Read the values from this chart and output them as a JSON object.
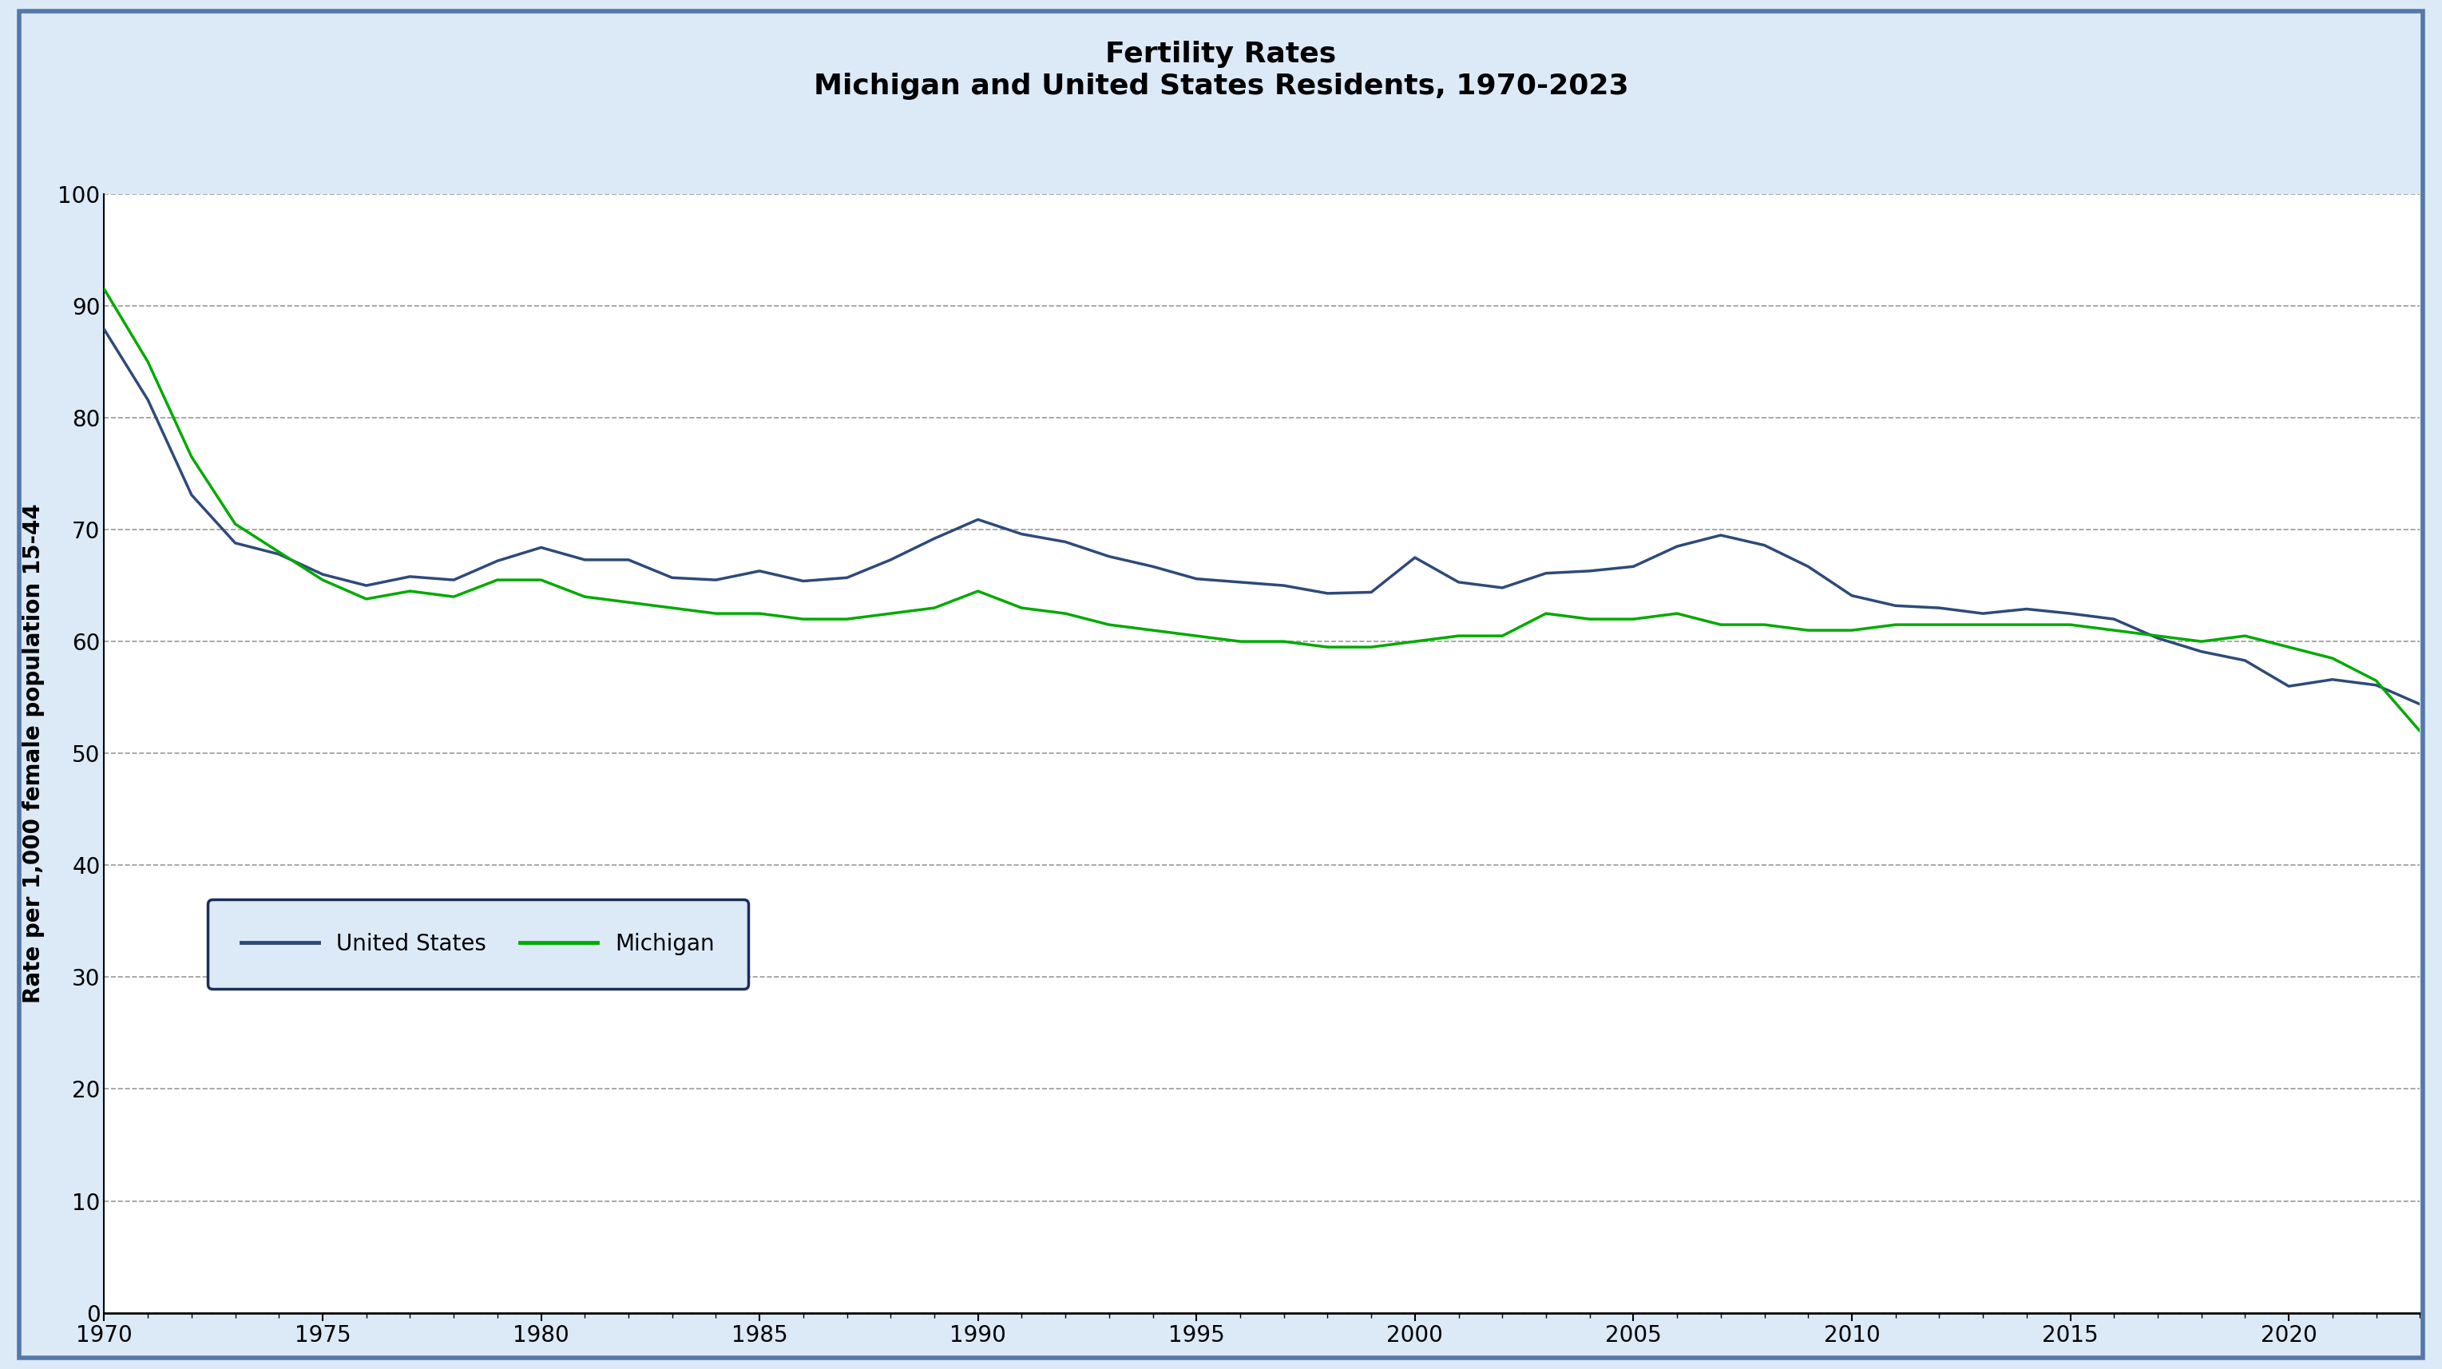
{
  "title_line1": "Fertility Rates",
  "title_line2": "Michigan and United States Residents, 1970-2023",
  "ylabel": "Rate per 1,000 female population 15-44",
  "xlabel": "",
  "background_color": "#dce9f7",
  "plot_bg_color": "#ffffff",
  "ylim": [
    0,
    100
  ],
  "yticks": [
    0,
    10,
    20,
    30,
    40,
    50,
    60,
    70,
    80,
    90,
    100
  ],
  "xticks": [
    1970,
    1975,
    1980,
    1985,
    1990,
    1995,
    2000,
    2005,
    2010,
    2015,
    2020
  ],
  "us_color": "#2e4a7a",
  "mi_color": "#00aa00",
  "line_width": 2.5,
  "years": [
    1970,
    1971,
    1972,
    1973,
    1974,
    1975,
    1976,
    1977,
    1978,
    1979,
    1980,
    1981,
    1982,
    1983,
    1984,
    1985,
    1986,
    1987,
    1988,
    1989,
    1990,
    1991,
    1992,
    1993,
    1994,
    1995,
    1996,
    1997,
    1998,
    1999,
    2000,
    2001,
    2002,
    2003,
    2004,
    2005,
    2006,
    2007,
    2008,
    2009,
    2010,
    2011,
    2012,
    2013,
    2014,
    2015,
    2016,
    2017,
    2018,
    2019,
    2020,
    2021,
    2022,
    2023
  ],
  "us_values": [
    87.9,
    81.6,
    73.1,
    68.8,
    67.8,
    66.0,
    65.0,
    65.8,
    65.5,
    67.2,
    68.4,
    67.3,
    67.3,
    65.7,
    65.5,
    66.3,
    65.4,
    65.7,
    67.3,
    69.2,
    70.9,
    69.6,
    68.9,
    67.6,
    66.7,
    65.6,
    65.3,
    65.0,
    64.3,
    64.4,
    67.5,
    65.3,
    64.8,
    66.1,
    66.3,
    66.7,
    68.5,
    69.5,
    68.6,
    66.7,
    64.1,
    63.2,
    63.0,
    62.5,
    62.9,
    62.5,
    62.0,
    60.3,
    59.1,
    58.3,
    56.0,
    56.6,
    56.1,
    54.4
  ],
  "mi_values": [
    91.5,
    85.0,
    76.5,
    70.5,
    68.0,
    65.5,
    63.8,
    64.5,
    64.0,
    65.5,
    65.5,
    64.0,
    63.5,
    63.0,
    62.5,
    62.5,
    62.0,
    62.0,
    62.5,
    63.0,
    64.5,
    63.0,
    62.5,
    61.5,
    61.0,
    60.5,
    60.0,
    60.0,
    59.5,
    59.5,
    60.0,
    60.5,
    60.5,
    62.5,
    62.0,
    62.0,
    62.5,
    61.5,
    61.5,
    61.0,
    61.0,
    61.5,
    61.5,
    61.5,
    61.5,
    61.5,
    61.0,
    60.5,
    60.0,
    60.5,
    59.5,
    58.5,
    56.5,
    52.0
  ],
  "legend_labels": [
    "United States",
    "Michigan"
  ],
  "legend_box_color": "#dce9f7",
  "legend_border_color": "#1a2e5a",
  "outer_border_color": "#5577aa",
  "title_fontsize": 26,
  "axis_label_fontsize": 20,
  "tick_fontsize": 20,
  "legend_fontsize": 20
}
